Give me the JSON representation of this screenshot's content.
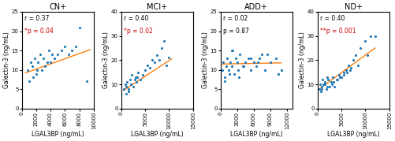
{
  "chart_data": [
    {
      "type": "scatter",
      "title": "CN+",
      "x_label": "LGAL3BP (ng/mL)",
      "y_label": "Galectin-3 (ng/mL)",
      "xlim": [
        0,
        10000
      ],
      "ylim": [
        0,
        25
      ],
      "xticks": [
        0,
        2000,
        4000,
        6000,
        8000,
        10000
      ],
      "yticks": [
        0,
        5,
        10,
        15,
        20,
        25
      ],
      "series": [
        {
          "type": "scatter",
          "x": [
            800,
            1200,
            1500,
            1800,
            2000,
            2200,
            2500,
            2800,
            3000,
            3200,
            3500,
            3800,
            4000,
            4200,
            4500,
            5000,
            5500,
            6000,
            6500,
            7000,
            7500,
            8000,
            9000,
            1000,
            1600,
            2100
          ],
          "values": [
            10,
            12,
            11,
            13,
            9,
            12,
            14,
            10,
            13,
            11,
            12,
            15,
            12,
            14,
            13,
            14,
            15,
            16,
            14,
            15,
            16,
            21,
            7,
            7,
            8,
            10
          ]
        },
        {
          "type": "line",
          "x": [
            500,
            9500
          ],
          "values": [
            9.2,
            15.2
          ]
        }
      ],
      "annotations": [
        {
          "text": "r = 0.37"
        },
        {
          "text": "*p = 0.04",
          "color": "#cc0000"
        }
      ]
    },
    {
      "type": "scatter",
      "title": "MCI+",
      "x_label": "LGAL3BP (ng/mL)",
      "y_label": "Galectin-3 (ng/mL)",
      "xlim": [
        0,
        15000
      ],
      "ylim": [
        0,
        40
      ],
      "xticks": [
        0,
        5000,
        10000,
        15000
      ],
      "yticks": [
        0,
        10,
        20,
        30,
        40
      ],
      "series": [
        {
          "type": "scatter",
          "x": [
            500,
            800,
            1000,
            1200,
            1500,
            1800,
            2000,
            2200,
            2500,
            2800,
            3000,
            3200,
            3500,
            4000,
            4500,
            5000,
            5500,
            6000,
            6500,
            7000,
            7500,
            8000,
            8500,
            9000,
            9500,
            10000,
            1100,
            1600,
            2100,
            3300
          ],
          "values": [
            8,
            10,
            9,
            11,
            7,
            12,
            10,
            14,
            9,
            12,
            13,
            11,
            15,
            12,
            14,
            16,
            18,
            17,
            20,
            19,
            22,
            20,
            25,
            28,
            18,
            21,
            6,
            8,
            10,
            13
          ]
        },
        {
          "type": "line",
          "x": [
            500,
            10500
          ],
          "values": [
            7.5,
            20.5
          ]
        }
      ],
      "annotations": [
        {
          "text": "r = 0.40"
        },
        {
          "text": "*p = 0.02",
          "color": "#cc0000"
        }
      ]
    },
    {
      "type": "scatter",
      "title": "ADD+",
      "x_label": "LGAL3BP (ng/mL)",
      "y_label": "Galectin-3 (ng/mL)",
      "xlim": [
        0,
        13000
      ],
      "ylim": [
        0,
        25
      ],
      "xticks": [
        0,
        3000,
        6000,
        9000,
        12000
      ],
      "yticks": [
        0,
        5,
        10,
        15,
        20,
        25
      ],
      "series": [
        {
          "type": "scatter",
          "x": [
            300,
            500,
            800,
            1000,
            1200,
            1500,
            1800,
            2000,
            2200,
            2500,
            2800,
            3000,
            3200,
            3500,
            4000,
            4500,
            5000,
            5500,
            6000,
            6500,
            7000,
            7500,
            8000,
            9000,
            10000,
            11000,
            700,
            1600,
            2100,
            3300,
            4200,
            5500,
            6800,
            8500,
            10500
          ],
          "values": [
            10,
            12,
            8,
            11,
            13,
            10,
            12,
            11,
            15,
            9,
            13,
            12,
            10,
            14,
            11,
            12,
            13,
            10,
            12,
            11,
            13,
            14,
            10,
            12,
            13,
            10,
            7,
            9,
            15,
            8,
            11,
            13,
            12,
            14,
            9
          ]
        },
        {
          "type": "line",
          "x": [
            300,
            11000
          ],
          "values": [
            11.5,
            11.8
          ]
        }
      ],
      "annotations": [
        {
          "text": "r = 0.02"
        },
        {
          "text": "p = 0.87"
        }
      ]
    },
    {
      "type": "scatter",
      "title": "ND+",
      "x_label": "LGAL3BP (ng/mL)",
      "y_label": "Galectin-3 (ng/mL)",
      "xlim": [
        0,
        15000
      ],
      "ylim": [
        0,
        40
      ],
      "xticks": [
        0,
        5000,
        10000,
        15000
      ],
      "yticks": [
        0,
        10,
        20,
        30,
        40
      ],
      "series": [
        {
          "type": "scatter",
          "x": [
            300,
            500,
            800,
            1000,
            1200,
            1500,
            1800,
            2000,
            2200,
            2500,
            2800,
            3000,
            3200,
            3500,
            4000,
            4500,
            5000,
            5500,
            6000,
            6500,
            7000,
            7500,
            8000,
            9000,
            10000,
            11000,
            700,
            1600,
            2100,
            3300,
            4200,
            5500,
            6800,
            8500,
            10500,
            12000,
            900,
            4700,
            6200
          ],
          "values": [
            8,
            10,
            9,
            12,
            10,
            11,
            8,
            13,
            12,
            9,
            11,
            10,
            13,
            9,
            12,
            14,
            13,
            15,
            16,
            18,
            17,
            20,
            22,
            25,
            28,
            30,
            7,
            10,
            9,
            11,
            12,
            14,
            16,
            18,
            22,
            30,
            8,
            13,
            15
          ]
        },
        {
          "type": "line",
          "x": [
            300,
            12000
          ],
          "values": [
            8.0,
            25.0
          ]
        }
      ],
      "annotations": [
        {
          "text": "r = 0.40"
        },
        {
          "text": "**p = 0.001",
          "color": "#cc0000"
        }
      ]
    }
  ]
}
